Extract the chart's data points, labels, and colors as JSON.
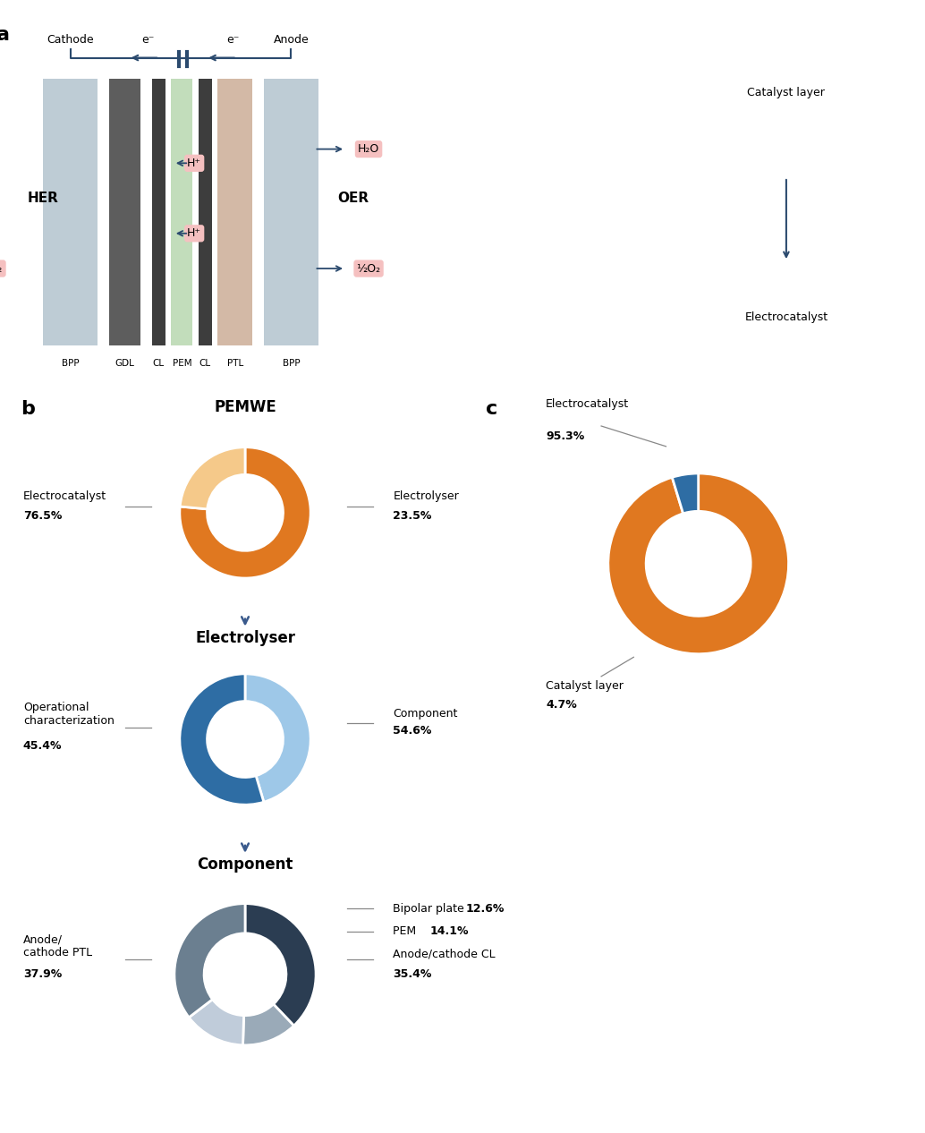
{
  "panel_b": {
    "title": "b",
    "donut1": {
      "title": "PEMWE",
      "values": [
        76.5,
        23.5
      ],
      "colors": [
        "#E07820",
        "#F5C98A"
      ],
      "labels": [
        "Electrocatalyst",
        "Electrolyser"
      ],
      "pcts": [
        "76.5%",
        "23.5%"
      ]
    },
    "donut2": {
      "title": "Electrolyser",
      "values": [
        45.4,
        54.6
      ],
      "colors": [
        "#9EC8E8",
        "#2E6DA4"
      ],
      "labels": [
        "Operational\ncharacterization",
        "Component"
      ],
      "pcts": [
        "45.4%",
        "54.6%"
      ]
    },
    "donut3": {
      "title": "Component",
      "values": [
        37.9,
        12.6,
        14.1,
        35.4
      ],
      "colors": [
        "#2B3D52",
        "#9AAAB8",
        "#C0CCDA",
        "#6B7F90"
      ],
      "labels": [
        "Anode/\ncathode PTL",
        "Bipolar plate",
        "PEM",
        "Anode/cathode CL"
      ],
      "pcts": [
        "37.9%",
        "12.6%",
        "14.1%",
        "35.4%"
      ]
    }
  },
  "panel_c": {
    "title": "c",
    "donut": {
      "values": [
        95.3,
        4.7
      ],
      "colors": [
        "#E07820",
        "#2E6DA4"
      ],
      "labels": [
        "Electrocatalyst",
        "Catalyst layer"
      ],
      "pcts": [
        "95.3%",
        "4.7%"
      ]
    }
  },
  "arrow_color": "#3A5A8C",
  "bg": "#FFFFFF",
  "panel_a": {
    "title": "a",
    "components": [
      "BPP",
      "GDL",
      "CL",
      "PEM",
      "CL",
      "PTL",
      "BPP"
    ],
    "layer_colors": [
      "#A0B4C4",
      "#383838",
      "#202020",
      "#B0D8A8",
      "#202020",
      "#C0A090",
      "#A0B4C4"
    ],
    "cathode": "Cathode",
    "anode": "Anode",
    "HER": "HER",
    "OER": "OER",
    "right_labels": [
      "Catalyst layer",
      "Electrocatalyst"
    ]
  }
}
